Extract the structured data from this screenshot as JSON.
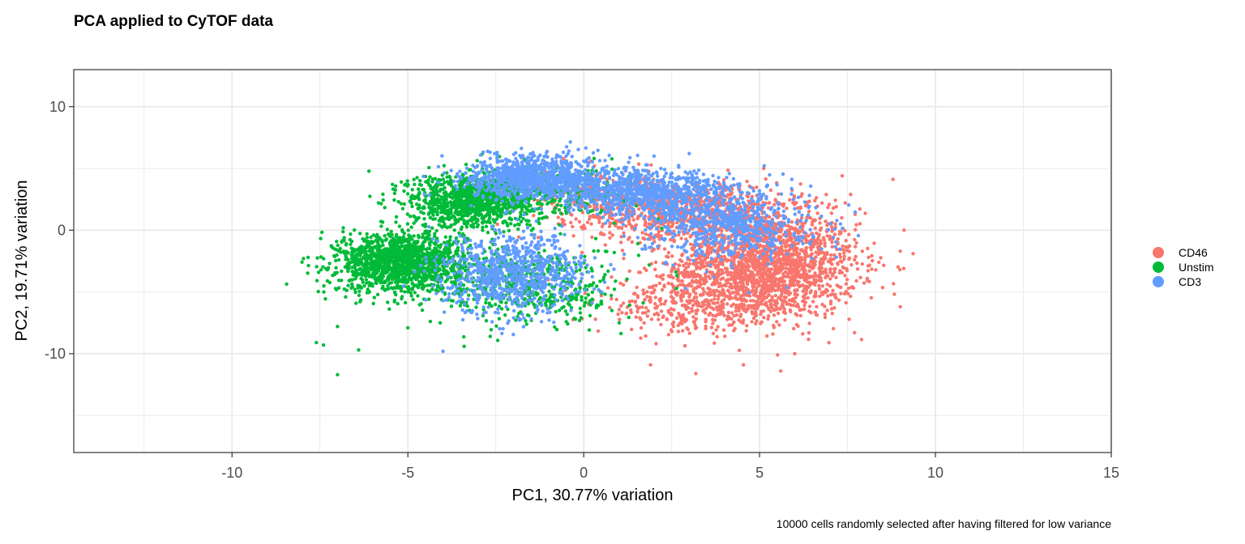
{
  "chart_data": {
    "type": "scatter",
    "title": "PCA applied to CyTOF data",
    "xlabel": "PC1, 30.77% variation",
    "ylabel": "PC2, 19.71% variation",
    "caption": "10000 cells randomly selected after having filtered for low variance",
    "xlim": [
      -14.5,
      15
    ],
    "ylim": [
      -18,
      13
    ],
    "x_ticks": [
      -10,
      -5,
      0,
      5,
      10,
      15
    ],
    "x_tick_labels": [
      "-10",
      "-5",
      "0",
      "5",
      "10",
      "15"
    ],
    "y_ticks": [
      -10,
      0,
      10
    ],
    "y_tick_labels": [
      "-10",
      "0",
      "10"
    ],
    "grid": true,
    "legend_position": "right",
    "point_count": 10000,
    "series": [
      {
        "name": "CD46",
        "color": "#F8766D",
        "clusters": [
          {
            "cx": 5.2,
            "cy": -2.8,
            "sx": 1.3,
            "sy": 2.1,
            "weight": 0.55
          },
          {
            "cx": 3.0,
            "cy": 1.5,
            "sx": 1.6,
            "sy": 1.2,
            "weight": 0.25
          },
          {
            "cx": 3.2,
            "cy": -6.0,
            "sx": 1.4,
            "sy": 1.2,
            "weight": 0.12
          },
          {
            "cx": 0.5,
            "cy": 2.8,
            "sx": 1.2,
            "sy": 1.0,
            "weight": 0.08
          }
        ],
        "outliers": [
          [
            1.9,
            -10.9
          ],
          [
            5.6,
            -11.4
          ],
          [
            9.0,
            -1.7
          ],
          [
            9.0,
            -6.2
          ],
          [
            6.0,
            -10.0
          ],
          [
            7.7,
            -8.3
          ]
        ]
      },
      {
        "name": "Unstim",
        "color": "#00BA38",
        "clusters": [
          {
            "cx": -5.2,
            "cy": -2.6,
            "sx": 0.9,
            "sy": 1.2,
            "weight": 0.45
          },
          {
            "cx": -3.2,
            "cy": 2.4,
            "sx": 0.9,
            "sy": 1.1,
            "weight": 0.3
          },
          {
            "cx": -1.5,
            "cy": -4.5,
            "sx": 1.3,
            "sy": 1.6,
            "weight": 0.15
          },
          {
            "cx": -1.3,
            "cy": 3.0,
            "sx": 1.3,
            "sy": 1.0,
            "weight": 0.1
          }
        ],
        "outliers": [
          [
            -7.0,
            -11.7
          ],
          [
            -7.6,
            -9.1
          ],
          [
            -7.4,
            -9.3
          ],
          [
            -6.4,
            -9.7
          ],
          [
            -3.4,
            -9.4
          ],
          [
            -7.0,
            -7.8
          ],
          [
            -5.0,
            -7.9
          ],
          [
            0.8,
            -6.5
          ]
        ]
      },
      {
        "name": "CD3",
        "color": "#619CFF",
        "clusters": [
          {
            "cx": -1.3,
            "cy": 4.3,
            "sx": 1.0,
            "sy": 0.9,
            "weight": 0.3
          },
          {
            "cx": 1.8,
            "cy": 3.0,
            "sx": 1.2,
            "sy": 0.9,
            "weight": 0.25
          },
          {
            "cx": -2.0,
            "cy": -3.5,
            "sx": 1.0,
            "sy": 1.6,
            "weight": 0.25
          },
          {
            "cx": 4.2,
            "cy": 0.5,
            "sx": 1.2,
            "sy": 1.4,
            "weight": 0.2
          }
        ],
        "outliers": [
          [
            -4.0,
            -9.8
          ],
          [
            -1.2,
            -7.4
          ],
          [
            3.0,
            6.2
          ],
          [
            2.0,
            6.0
          ]
        ]
      }
    ]
  }
}
